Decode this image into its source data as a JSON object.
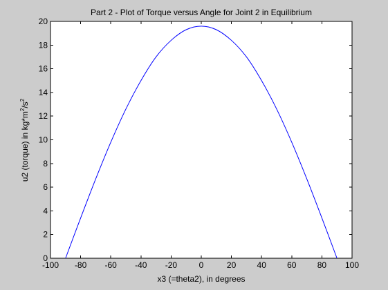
{
  "colors": {
    "figure_bg": "#cccccc",
    "axes_bg": "#ffffff",
    "axis": "#000000",
    "line": "#0000ff"
  },
  "chart_data": {
    "type": "line",
    "title": "Part 2 - Plot of Torque versus Angle for Joint 2 in Equilibrium",
    "xlabel": "x3 (=theta2), in degrees",
    "ylabel_base": "u2 (torque) in kg*m",
    "ylabel_exp1": "2",
    "ylabel_mid": "/s",
    "ylabel_exp2": "2",
    "xlim": [
      -100,
      100
    ],
    "ylim": [
      0,
      20
    ],
    "xticks": [
      -100,
      -80,
      -60,
      -40,
      -20,
      0,
      20,
      40,
      60,
      80,
      100
    ],
    "yticks": [
      0,
      2,
      4,
      6,
      8,
      10,
      12,
      14,
      16,
      18,
      20
    ],
    "grid": false,
    "series": [
      {
        "x": [
          -90,
          -80,
          -70,
          -60,
          -50,
          -40,
          -30,
          -20,
          -10,
          0,
          10,
          20,
          30,
          40,
          50,
          60,
          70,
          80,
          90
        ],
        "y": [
          0,
          3.4,
          6.7,
          9.8,
          12.6,
          15.0,
          17.0,
          18.4,
          19.3,
          19.6,
          19.3,
          18.4,
          17.0,
          15.0,
          12.6,
          9.8,
          6.7,
          3.4,
          0
        ]
      }
    ]
  }
}
